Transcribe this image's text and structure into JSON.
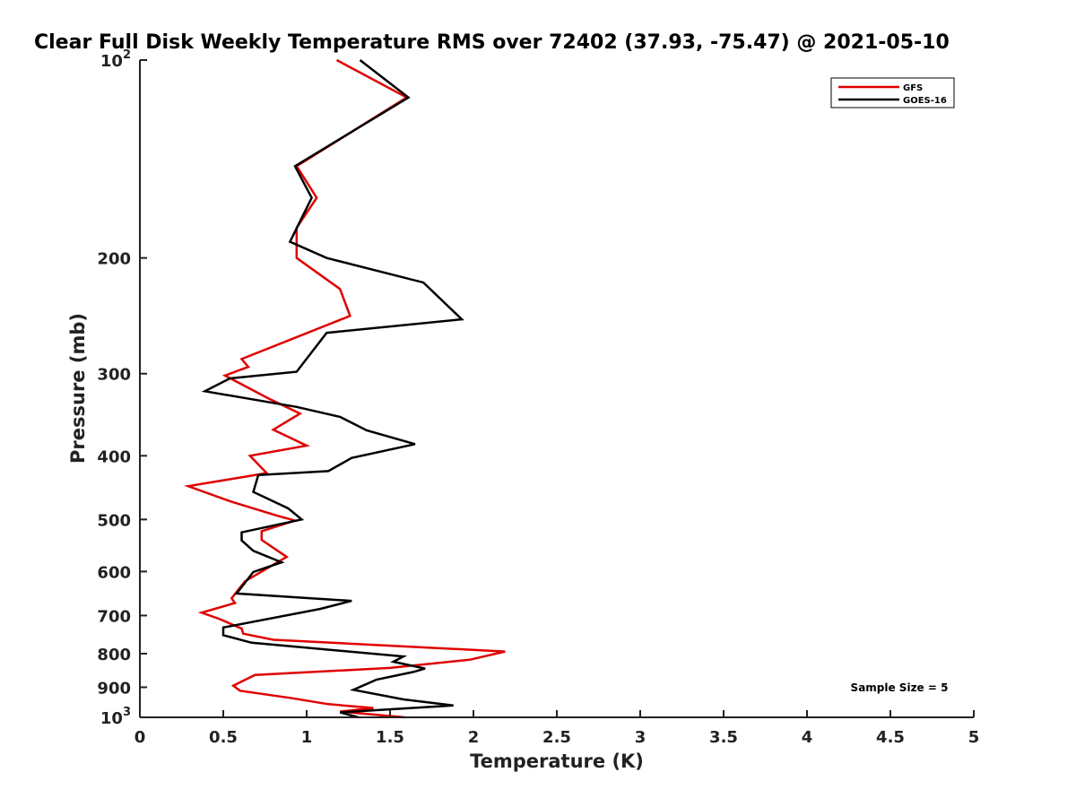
{
  "chart_data": {
    "type": "line",
    "title": "Clear Full Disk Weekly Temperature RMS over 72402 (37.93, -75.47) @ 2021-05-10",
    "xlabel": "Temperature (K)",
    "ylabel": "Pressure (mb)",
    "xlim": [
      0,
      5
    ],
    "ylim": [
      100,
      1000
    ],
    "y_scale": "log",
    "y_reversed": true,
    "grid": false,
    "legend_position": "top-right",
    "x_ticks": [
      {
        "value": 0,
        "label": "0"
      },
      {
        "value": 0.5,
        "label": "0.5"
      },
      {
        "value": 1,
        "label": "1"
      },
      {
        "value": 1.5,
        "label": "1.5"
      },
      {
        "value": 2,
        "label": "2"
      },
      {
        "value": 2.5,
        "label": "2.5"
      },
      {
        "value": 3,
        "label": "3"
      },
      {
        "value": 3.5,
        "label": "3.5"
      },
      {
        "value": 4,
        "label": "4"
      },
      {
        "value": 4.5,
        "label": "4.5"
      },
      {
        "value": 5,
        "label": "5"
      }
    ],
    "y_ticks": [
      {
        "value": 100,
        "label": "10",
        "sup": "2"
      },
      {
        "value": 200,
        "label": "200",
        "sup": ""
      },
      {
        "value": 300,
        "label": "300",
        "sup": ""
      },
      {
        "value": 400,
        "label": "400",
        "sup": ""
      },
      {
        "value": 500,
        "label": "500",
        "sup": ""
      },
      {
        "value": 600,
        "label": "600",
        "sup": ""
      },
      {
        "value": 700,
        "label": "700",
        "sup": ""
      },
      {
        "value": 800,
        "label": "800",
        "sup": ""
      },
      {
        "value": 900,
        "label": "900",
        "sup": ""
      },
      {
        "value": 1000,
        "label": "10",
        "sup": "3"
      }
    ],
    "series": [
      {
        "name": "GFS",
        "color": "#e00000",
        "x": [
          1.18,
          1.6,
          0.94,
          1.06,
          0.94,
          0.94,
          1.2,
          1.26,
          0.61,
          0.65,
          0.51,
          0.77,
          0.96,
          0.8,
          1.0,
          0.66,
          0.76,
          0.29,
          0.55,
          0.82,
          0.93,
          0.73,
          0.73,
          0.88,
          0.63,
          0.55,
          0.57,
          0.37,
          0.48,
          0.61,
          0.62,
          0.8,
          2.19,
          1.98,
          1.5,
          0.69,
          0.56,
          0.6,
          0.9,
          1.13,
          1.4,
          1.2,
          1.59
        ],
        "y": [
          100,
          114,
          145,
          162,
          180,
          200,
          223,
          245,
          285,
          293,
          302,
          327,
          345,
          365,
          386,
          400,
          425,
          445,
          470,
          493,
          502,
          521,
          537,
          570,
          621,
          659,
          670,
          693,
          709,
          733,
          746,
          762,
          794,
          817,
          841,
          862,
          895,
          911,
          934,
          955,
          968,
          980,
          1000
        ]
      },
      {
        "name": "GOES-16",
        "color": "#000000",
        "x": [
          1.32,
          1.61,
          0.93,
          1.03,
          0.9,
          1.12,
          1.7,
          1.93,
          1.12,
          0.94,
          0.54,
          0.39,
          0.94,
          1.2,
          1.36,
          1.65,
          1.27,
          1.13,
          0.71,
          0.68,
          0.89,
          0.97,
          0.61,
          0.61,
          0.68,
          0.85,
          0.68,
          0.58,
          1.27,
          1.08,
          0.5,
          0.5,
          0.67,
          1.58,
          1.52,
          1.71,
          1.64,
          1.42,
          1.28,
          1.58,
          1.88,
          1.2,
          1.31
        ],
        "y": [
          100,
          114,
          145,
          162,
          189,
          200,
          218,
          248,
          260,
          298,
          305,
          319,
          337,
          349,
          366,
          384,
          403,
          422,
          428,
          454,
          481,
          500,
          523,
          538,
          558,
          581,
          601,
          648,
          665,
          684,
          730,
          750,
          770,
          808,
          823,
          843,
          853,
          876,
          908,
          939,
          959,
          983,
          1000
        ]
      }
    ],
    "annotations": [
      "Sample Size = 5"
    ]
  }
}
